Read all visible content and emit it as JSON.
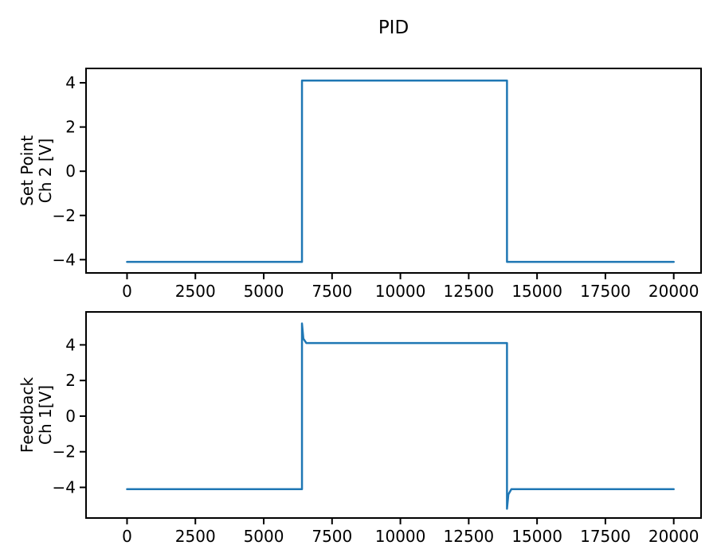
{
  "title": "PID",
  "colors": {
    "line": "#1f77b4",
    "spine": "#000000",
    "text": "#000000",
    "background": "#ffffff"
  },
  "chart_data": [
    {
      "type": "line",
      "title": "PID",
      "xlabel": "",
      "ylabel": "Set Point\nCh 2 [V]",
      "ylabel_lines": [
        "Set Point",
        "Ch 2 [V]"
      ],
      "xlim": [
        -1500,
        21000
      ],
      "ylim": [
        -4.6,
        4.65
      ],
      "xticks": [
        0,
        2500,
        5000,
        7500,
        10000,
        12500,
        15000,
        17500,
        20000
      ],
      "yticks": [
        4,
        2,
        0,
        -2,
        -4
      ],
      "grid": false,
      "legend": "none",
      "series": [
        {
          "name": "set-point-ch2",
          "color": "#1f77b4",
          "x": [
            0,
            6400,
            6400,
            13900,
            13900,
            20000
          ],
          "y": [
            -4.1,
            -4.1,
            4.1,
            4.1,
            -4.1,
            -4.1
          ]
        }
      ]
    },
    {
      "type": "line",
      "title": "",
      "xlabel": "",
      "ylabel": "Feedback\nCh 1[V]",
      "ylabel_lines": [
        "Feedback",
        "Ch 1[V]"
      ],
      "xlim": [
        -1500,
        21000
      ],
      "ylim": [
        -5.72,
        5.85
      ],
      "xticks": [
        0,
        2500,
        5000,
        7500,
        10000,
        12500,
        15000,
        17500,
        20000
      ],
      "yticks": [
        4,
        2,
        0,
        -2,
        -4
      ],
      "grid": false,
      "legend": "none",
      "series": [
        {
          "name": "feedback-ch1",
          "color": "#1f77b4",
          "x": [
            0,
            6400,
            6400,
            6450,
            6560,
            13900,
            13900,
            13950,
            14060,
            20000
          ],
          "y": [
            -4.1,
            -4.1,
            5.2,
            4.35,
            4.1,
            4.1,
            -5.2,
            -4.4,
            -4.1,
            -4.1
          ]
        }
      ]
    }
  ]
}
